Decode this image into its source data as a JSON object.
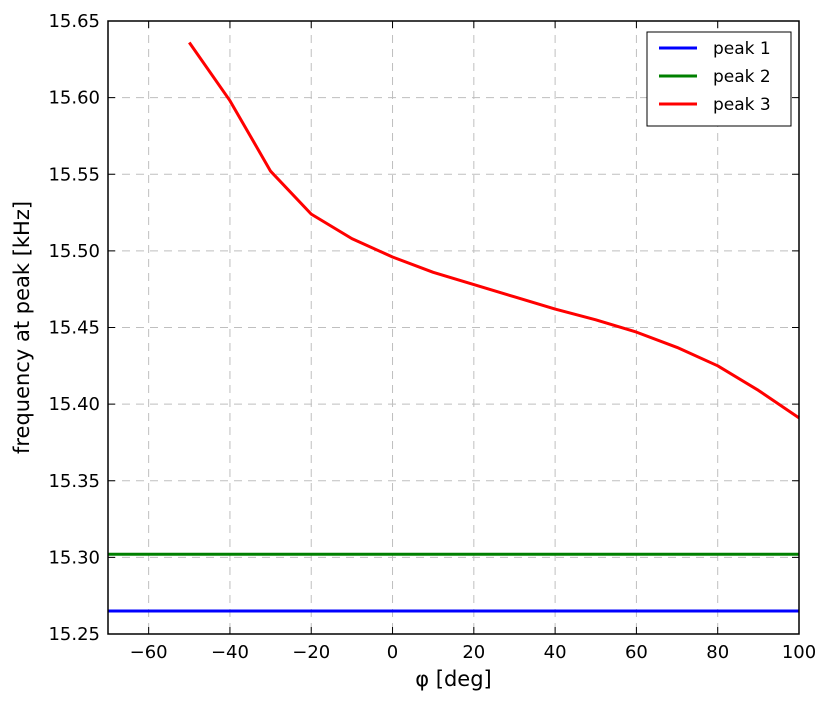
{
  "chart_data": {
    "type": "line",
    "title": "",
    "xlabel": "φ [deg]",
    "ylabel": "frequency at peak [kHz]",
    "xlim": [
      -70,
      100
    ],
    "ylim": [
      15.25,
      15.65
    ],
    "xticks": [
      -60,
      -40,
      -20,
      0,
      20,
      40,
      60,
      80,
      100
    ],
    "xtick_labels": [
      "−60",
      "−40",
      "−20",
      "0",
      "20",
      "40",
      "60",
      "80",
      "100"
    ],
    "yticks": [
      15.25,
      15.3,
      15.35,
      15.4,
      15.45,
      15.5,
      15.55,
      15.6,
      15.65
    ],
    "ytick_labels": [
      "15.25",
      "15.30",
      "15.35",
      "15.40",
      "15.45",
      "15.50",
      "15.55",
      "15.60",
      "15.65"
    ],
    "grid": true,
    "legend_position": "top-right",
    "series": [
      {
        "name": "peak 1",
        "color": "#0000ff",
        "x": [
          -70,
          100
        ],
        "y": [
          15.265,
          15.265
        ]
      },
      {
        "name": "peak 2",
        "color": "#008000",
        "x": [
          -70,
          100
        ],
        "y": [
          15.302,
          15.302
        ]
      },
      {
        "name": "peak 3",
        "color": "#ff0000",
        "x": [
          -50,
          -40,
          -30,
          -20,
          -10,
          0,
          10,
          20,
          30,
          40,
          50,
          60,
          70,
          80,
          90,
          100
        ],
        "y": [
          15.636,
          15.598,
          15.552,
          15.524,
          15.508,
          15.496,
          15.486,
          15.478,
          15.47,
          15.462,
          15.455,
          15.447,
          15.437,
          15.425,
          15.409,
          15.391
        ]
      }
    ]
  }
}
